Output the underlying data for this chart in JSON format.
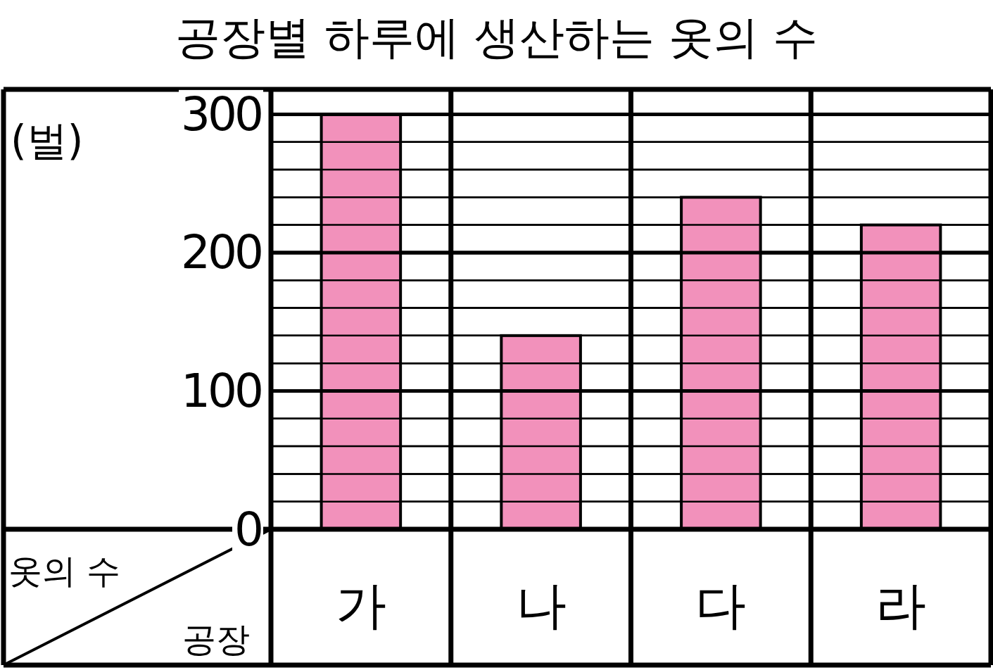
{
  "chart_data": {
    "type": "bar",
    "title": "공장별 하루에 생산하는 옷의 수",
    "xlabel": "공장",
    "ylabel": "옷의 수",
    "annotations": [
      "(벌)"
    ],
    "categories": [
      "가",
      "나",
      "다",
      "라"
    ],
    "values": [
      300,
      140,
      240,
      220
    ],
    "color": "#f291bb",
    "ylim": [
      0,
      318
    ],
    "yticks": [
      0,
      {
        "value": 20,
        "label": null
      },
      {
        "value": 40,
        "label": null
      },
      {
        "value": 60,
        "label": null
      },
      {
        "value": 80,
        "label": null
      },
      100,
      {
        "value": 120,
        "label": null
      },
      {
        "value": 140,
        "label": null
      },
      {
        "value": 160,
        "label": null
      },
      {
        "value": 180,
        "label": null
      },
      200,
      {
        "value": 220,
        "label": null
      },
      {
        "value": 240,
        "label": null
      },
      {
        "value": 260,
        "label": null
      },
      {
        "value": 280,
        "label": null
      },
      300
    ],
    "grid": "y"
  }
}
